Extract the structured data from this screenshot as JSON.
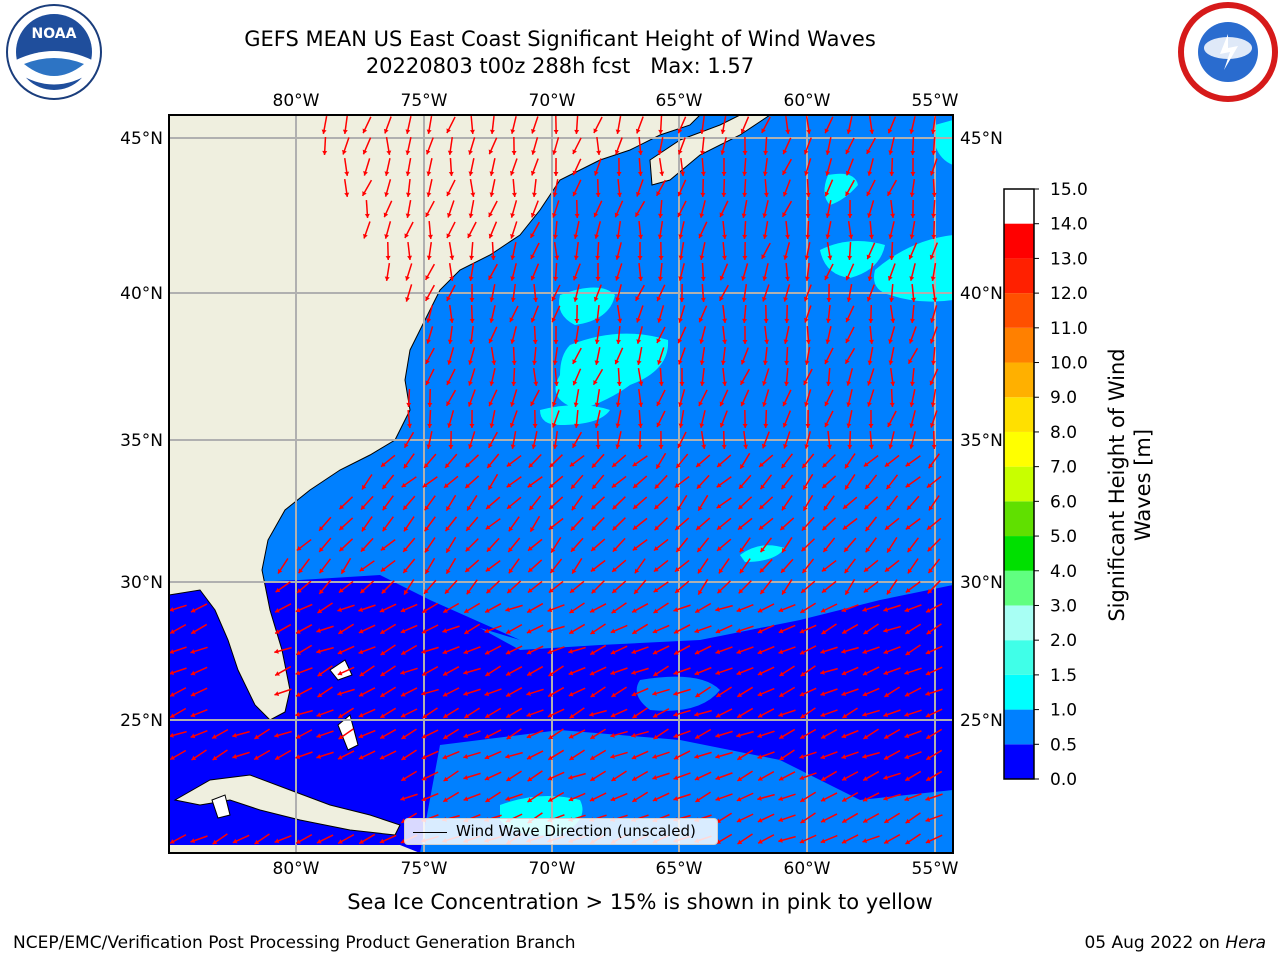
{
  "header": {
    "title_line1": "GEFS MEAN US East Coast Significant Height of Wind Waves",
    "title_line2": "20220803 t00z 288h fcst   Max: 1.57"
  },
  "logos": {
    "left": "noaa-logo",
    "right": "nws-logo",
    "left_text": "NOAA"
  },
  "map": {
    "lon_labels": [
      "80°W",
      "75°W",
      "70°W",
      "65°W",
      "60°W",
      "55°W"
    ],
    "lat_labels": [
      "45°N",
      "40°N",
      "35°N",
      "30°N",
      "25°N"
    ],
    "colors": {
      "land": "#efefdf",
      "water_lo": "#0000ff",
      "water_mid": "#0080ff",
      "water_hi": "#00ffff",
      "arrow": "#ff0000",
      "grid": "#b0b0b0"
    }
  },
  "colorbar": {
    "label": "Significant Height of Wind Waves [m]",
    "ticks": [
      "0.0",
      "0.5",
      "1.0",
      "1.5",
      "2.0",
      "3.0",
      "4.0",
      "5.0",
      "6.0",
      "7.0",
      "8.0",
      "9.0",
      "10.0",
      "11.0",
      "12.0",
      "13.0",
      "14.0",
      "15.0"
    ],
    "colors": [
      "#0000ff",
      "#0080ff",
      "#00ffff",
      "#40ffe8",
      "#a8fff4",
      "#60ff80",
      "#00e000",
      "#60e000",
      "#c8ff00",
      "#ffff00",
      "#ffe000",
      "#ffb000",
      "#ff8000",
      "#ff5000",
      "#ff2000",
      "#ff0000"
    ]
  },
  "legend": {
    "label": "Wind Wave Direction (unscaled)"
  },
  "notes": {
    "ice": "Sea Ice Concentration > 15% is shown in pink to yellow"
  },
  "footer": {
    "left": "NCEP/EMC/Verification Post Processing Product Generation Branch",
    "date": "05 Aug 2022 on ",
    "machine": "Hera"
  }
}
